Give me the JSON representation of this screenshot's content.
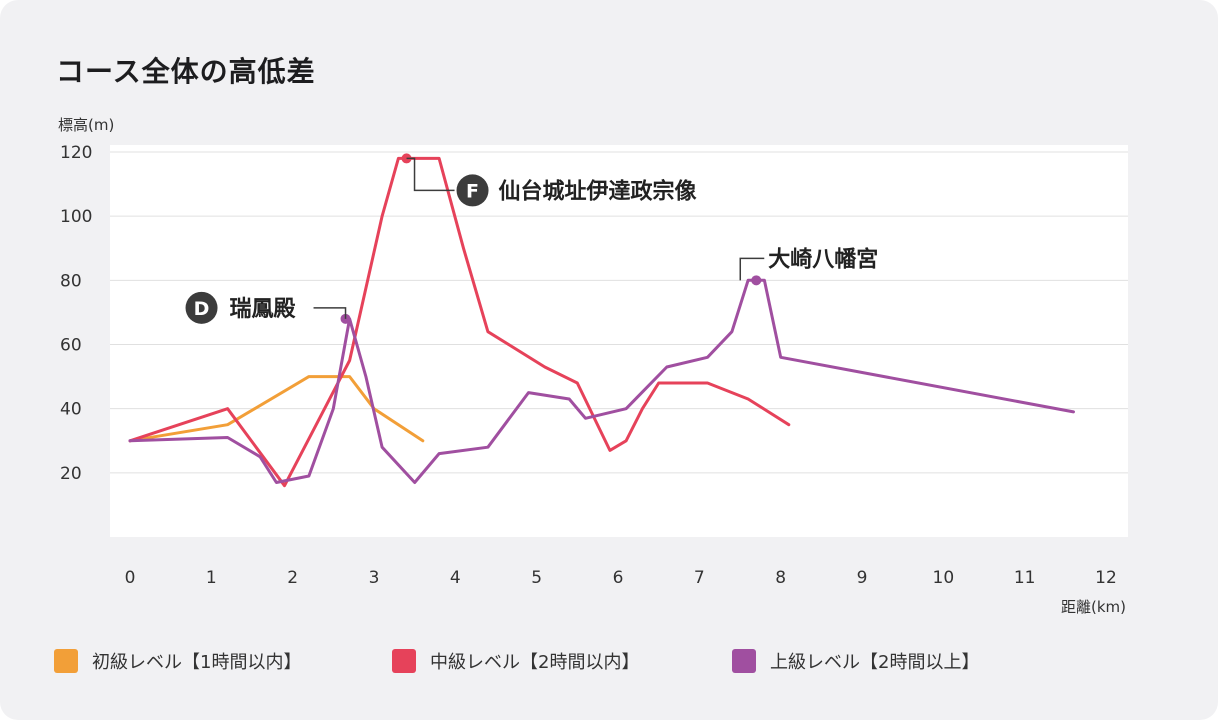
{
  "title": "コース全体の高低差",
  "colors": {
    "beginner": "#f29f38",
    "intermediate": "#e6425a",
    "advanced": "#a04fa0",
    "marker_dark": "#3c3c3c",
    "grid": "#e0e0e0"
  },
  "chart_data": {
    "type": "line",
    "ylabel": "標高(m)",
    "xlabel": "距離(km)",
    "xlim": [
      0,
      12.4
    ],
    "ylim": [
      0,
      120
    ],
    "xticks": [
      "0",
      "1",
      "2",
      "3",
      "4",
      "5",
      "6",
      "7",
      "8",
      "9",
      "10",
      "11",
      "12"
    ],
    "yticks": [
      "20",
      "40",
      "60",
      "80",
      "100",
      "120"
    ],
    "series": [
      {
        "name": "初級レベル【1時間以内】",
        "key": "beginner",
        "points": [
          [
            0,
            30
          ],
          [
            1.2,
            35
          ],
          [
            2.2,
            50
          ],
          [
            2.7,
            50
          ],
          [
            3.0,
            40
          ],
          [
            3.6,
            30
          ]
        ]
      },
      {
        "name": "中級レベル【2時間以内】",
        "key": "intermediate",
        "points": [
          [
            0,
            30
          ],
          [
            1.2,
            40
          ],
          [
            1.9,
            16
          ],
          [
            2.7,
            55
          ],
          [
            3.1,
            100
          ],
          [
            3.3,
            118
          ],
          [
            3.6,
            118
          ],
          [
            3.8,
            118
          ],
          [
            4.1,
            90
          ],
          [
            4.4,
            64
          ],
          [
            5.1,
            53
          ],
          [
            5.5,
            48
          ],
          [
            5.9,
            27
          ],
          [
            6.1,
            30
          ],
          [
            6.3,
            40
          ],
          [
            6.5,
            48
          ],
          [
            7.1,
            48
          ],
          [
            7.6,
            43
          ],
          [
            8.1,
            35
          ]
        ]
      },
      {
        "name": "上級レベル【2時間以上】",
        "key": "advanced",
        "points": [
          [
            0,
            30
          ],
          [
            1.2,
            31
          ],
          [
            1.6,
            25
          ],
          [
            1.8,
            17
          ],
          [
            2.2,
            19
          ],
          [
            2.5,
            40
          ],
          [
            2.7,
            68
          ],
          [
            2.9,
            50
          ],
          [
            3.1,
            28
          ],
          [
            3.5,
            17
          ],
          [
            3.8,
            26
          ],
          [
            4.4,
            28
          ],
          [
            4.9,
            45
          ],
          [
            5.4,
            43
          ],
          [
            5.6,
            37
          ],
          [
            6.1,
            40
          ],
          [
            6.6,
            53
          ],
          [
            7.1,
            56
          ],
          [
            7.4,
            64
          ],
          [
            7.6,
            80
          ],
          [
            7.8,
            80
          ],
          [
            8.0,
            56
          ],
          [
            11.6,
            39
          ]
        ]
      }
    ],
    "annotations": [
      {
        "badge": "F",
        "text": "仙台城址伊達政宗像",
        "x": 3.4,
        "y": 118,
        "series": "intermediate"
      },
      {
        "badge": "D",
        "text": "瑞鳳殿",
        "x": 2.65,
        "y": 68,
        "series": "advanced"
      },
      {
        "badge": "",
        "text": "大崎八幡宮",
        "x": 7.7,
        "y": 80,
        "series": "advanced"
      }
    ]
  }
}
